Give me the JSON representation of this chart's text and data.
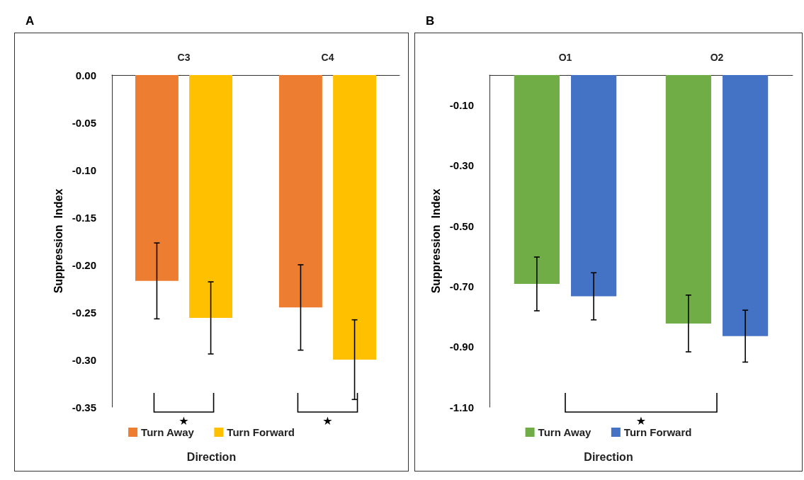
{
  "chart_data": [
    {
      "type": "bar",
      "title": "A",
      "xlabel": "Direction",
      "ylabel": "Suppression  Index",
      "categories": [
        "C3",
        "C4"
      ],
      "series": [
        {
          "name": "Turn Away",
          "color": "#ed7d31",
          "values": [
            -0.217,
            -0.245
          ],
          "errors": [
            0.04,
            0.045
          ]
        },
        {
          "name": "Turn Forward",
          "color": "#ffc000",
          "values": [
            -0.256,
            -0.3
          ],
          "errors": [
            0.038,
            0.042
          ]
        }
      ],
      "ylim": [
        -0.35,
        0
      ],
      "yticks": [
        {
          "value": -0.35,
          "label": "-0.35"
        },
        {
          "value": -0.3,
          "label": "-0.30"
        },
        {
          "value": -0.25,
          "label": "-0.25"
        },
        {
          "value": -0.2,
          "label": "-0.20"
        },
        {
          "value": -0.15,
          "label": "-0.15"
        },
        {
          "value": -0.1,
          "label": "-0.10"
        },
        {
          "value": -0.05,
          "label": "-0.05"
        },
        {
          "value": 0,
          "label": "0.00"
        }
      ],
      "annotations": [
        "★",
        "★"
      ],
      "grid": false,
      "legend": "bottom"
    },
    {
      "type": "bar",
      "title": "B",
      "xlabel": "Direction",
      "ylabel": "Suppression  Index",
      "categories": [
        "O1",
        "O2"
      ],
      "series": [
        {
          "name": "Turn Away",
          "color": "#70ad47",
          "values": [
            -0.692,
            -0.823
          ],
          "errors": [
            0.089,
            0.094
          ]
        },
        {
          "name": "Turn Forward",
          "color": "#4472c4",
          "values": [
            -0.733,
            -0.865
          ],
          "errors": [
            0.078,
            0.086
          ]
        }
      ],
      "ylim": [
        -1.1,
        0
      ],
      "yticks": [
        {
          "value": -1.1,
          "label": "-1.10"
        },
        {
          "value": -0.9,
          "label": "-0.90"
        },
        {
          "value": -0.7,
          "label": "-0.70"
        },
        {
          "value": -0.5,
          "label": "-0.50"
        },
        {
          "value": -0.3,
          "label": "-0.30"
        },
        {
          "value": -0.1,
          "label": "-0.10"
        }
      ],
      "annotations": [
        "★"
      ],
      "grid": false,
      "legend": "bottom"
    }
  ]
}
